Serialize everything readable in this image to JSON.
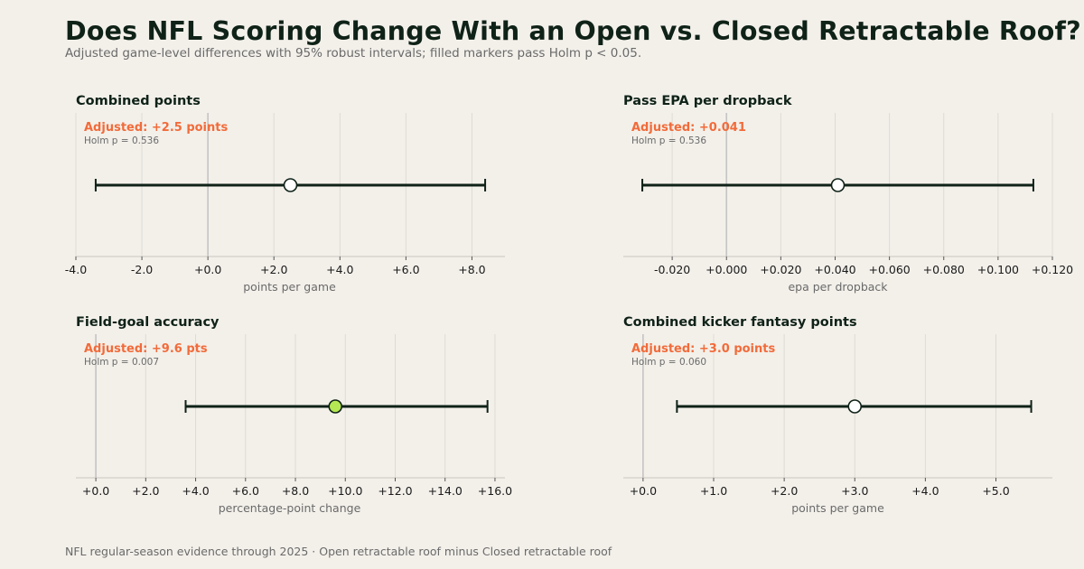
{
  "title": "Does NFL Scoring Change With an Open vs. Closed Retractable Roof?",
  "subtitle": "Adjusted game-level differences with 95% robust intervals; filled markers pass Holm p < 0.05.",
  "footer": "NFL regular-season evidence through 2025 · Open retractable roof minus Closed retractable roof",
  "colors": {
    "background": "#f3f0ea",
    "annotation": "#f26b3a",
    "interval": "#0f2218",
    "significant_marker": "#b5e853",
    "nonsignificant_marker": "#ffffff",
    "grid": "#dedbd4",
    "zero_line": "#c4c4c4"
  },
  "chart_data": [
    {
      "type": "forest",
      "title": "Combined points",
      "annotation": "Adjusted: +2.5 points",
      "holm_text": "Holm p = 0.536",
      "xlabel": "points per game",
      "estimate": 2.5,
      "ci": [
        -3.4,
        8.4
      ],
      "holm_p": 0.536,
      "significant": false,
      "xlim": [
        -4.0,
        9.0
      ],
      "ticks": [
        -4.0,
        -2.0,
        0.0,
        2.0,
        4.0,
        6.0,
        8.0
      ],
      "tick_labels": [
        "-4.0",
        "-2.0",
        "+0.0",
        "+2.0",
        "+4.0",
        "+6.0",
        "+8.0"
      ]
    },
    {
      "type": "forest",
      "title": "Pass EPA per dropback",
      "annotation": "Adjusted: +0.041",
      "holm_text": "Holm p = 0.536",
      "xlabel": "epa per dropback",
      "estimate": 0.041,
      "ci": [
        -0.031,
        0.113
      ],
      "holm_p": 0.536,
      "significant": false,
      "xlim": [
        -0.038,
        0.12
      ],
      "ticks": [
        -0.02,
        0.0,
        0.02,
        0.04,
        0.06,
        0.08,
        0.1,
        0.12
      ],
      "tick_labels": [
        "-0.020",
        "+0.000",
        "+0.020",
        "+0.040",
        "+0.060",
        "+0.080",
        "+0.100",
        "+0.120"
      ]
    },
    {
      "type": "forest",
      "title": "Field-goal accuracy",
      "annotation": "Adjusted: +9.6 pts",
      "holm_text": "Holm p = 0.007",
      "xlabel": "percentage-point change",
      "estimate": 9.6,
      "ci": [
        3.6,
        15.7
      ],
      "holm_p": 0.007,
      "significant": true,
      "xlim": [
        -0.8,
        16.4
      ],
      "ticks": [
        0,
        2,
        4,
        6,
        8,
        10,
        12,
        14,
        16
      ],
      "tick_labels": [
        "+0.0",
        "+2.0",
        "+4.0",
        "+6.0",
        "+8.0",
        "+10.0",
        "+12.0",
        "+14.0",
        "+16.0"
      ]
    },
    {
      "type": "forest",
      "title": "Combined kicker fantasy points",
      "annotation": "Adjusted: +3.0 points",
      "holm_text": "Holm p = 0.060",
      "xlabel": "points per game",
      "estimate": 3.0,
      "ci": [
        0.48,
        5.5
      ],
      "holm_p": 0.06,
      "significant": false,
      "xlim": [
        -0.28,
        5.8
      ],
      "ticks": [
        0,
        1,
        2,
        3,
        4,
        5
      ],
      "tick_labels": [
        "+0.0",
        "+1.0",
        "+2.0",
        "+3.0",
        "+4.0",
        "+5.0"
      ]
    }
  ]
}
